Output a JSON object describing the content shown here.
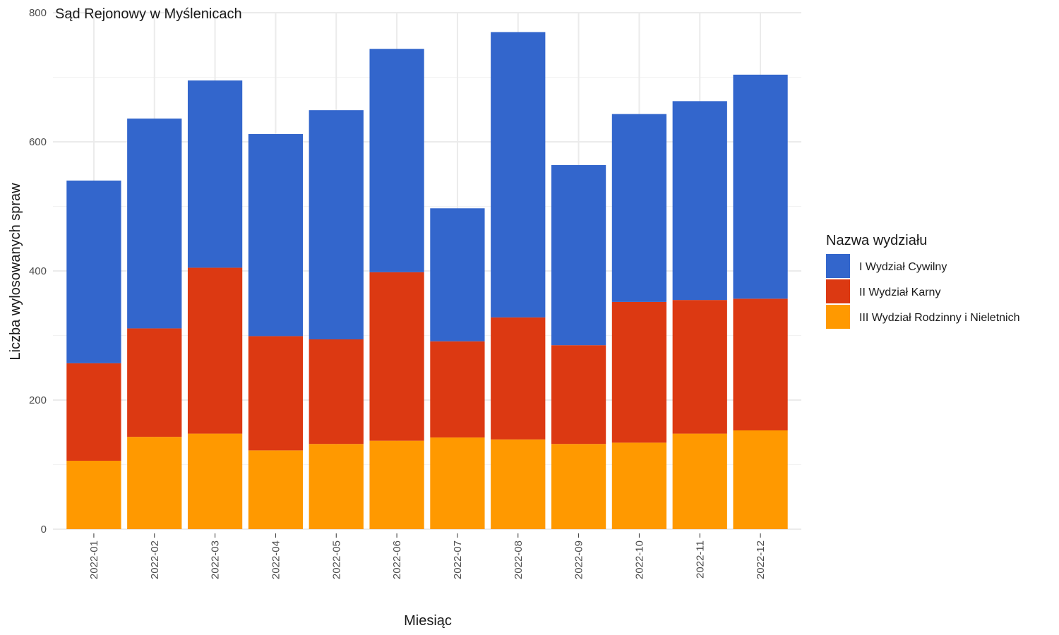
{
  "chart_data": {
    "type": "bar",
    "stacked": true,
    "title": "Sąd Rejonowy w Myślenicach",
    "xlabel": "Miesiąc",
    "ylabel": "Liczba wylosowanych spraw",
    "ylim": [
      0,
      800
    ],
    "yticks": [
      0,
      200,
      400,
      600,
      800
    ],
    "grid": true,
    "legend_title": "Nazwa wydziału",
    "legend_position": "right",
    "categories": [
      "2022-01",
      "2022-02",
      "2022-03",
      "2022-04",
      "2022-05",
      "2022-06",
      "2022-07",
      "2022-08",
      "2022-09",
      "2022-10",
      "2022-11",
      "2022-12"
    ],
    "series": [
      {
        "name": "I Wydział Cywilny",
        "color": "#3366cc",
        "values": [
          283,
          325,
          290,
          313,
          355,
          346,
          206,
          442,
          279,
          291,
          308,
          347
        ]
      },
      {
        "name": "II Wydział Karny",
        "color": "#dc3912",
        "values": [
          151,
          168,
          257,
          177,
          162,
          261,
          149,
          189,
          153,
          218,
          207,
          204
        ]
      },
      {
        "name": "III Wydział Rodzinny i Nieletnich",
        "color": "#ff9900",
        "values": [
          106,
          143,
          148,
          122,
          132,
          137,
          142,
          139,
          132,
          134,
          148,
          153
        ]
      }
    ]
  }
}
